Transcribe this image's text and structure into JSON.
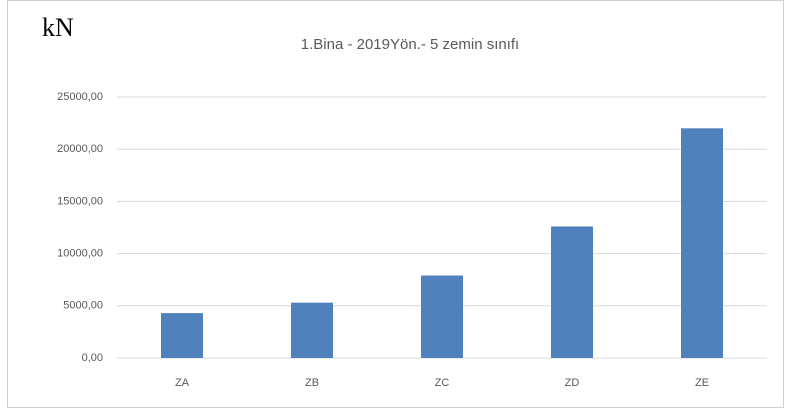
{
  "chart_data": {
    "type": "bar",
    "title": "1.Bina  - 2019Yön.- 5 zemin sınıfı",
    "ylabel": "kN",
    "categories": [
      "ZA",
      "ZB",
      "ZC",
      "ZD",
      "ZE"
    ],
    "values": [
      4300,
      5300,
      7900,
      12600,
      22000
    ],
    "color": "#4f81bd",
    "ylim": [
      0,
      25000
    ],
    "yticks": [
      {
        "value": 0,
        "label": "0,00"
      },
      {
        "value": 5000,
        "label": "5000,00"
      },
      {
        "value": 10000,
        "label": "10000,00"
      },
      {
        "value": 15000,
        "label": "15000,00"
      },
      {
        "value": 20000,
        "label": "20000,00"
      },
      {
        "value": 25000,
        "label": "25000,00"
      }
    ],
    "grid": true
  }
}
